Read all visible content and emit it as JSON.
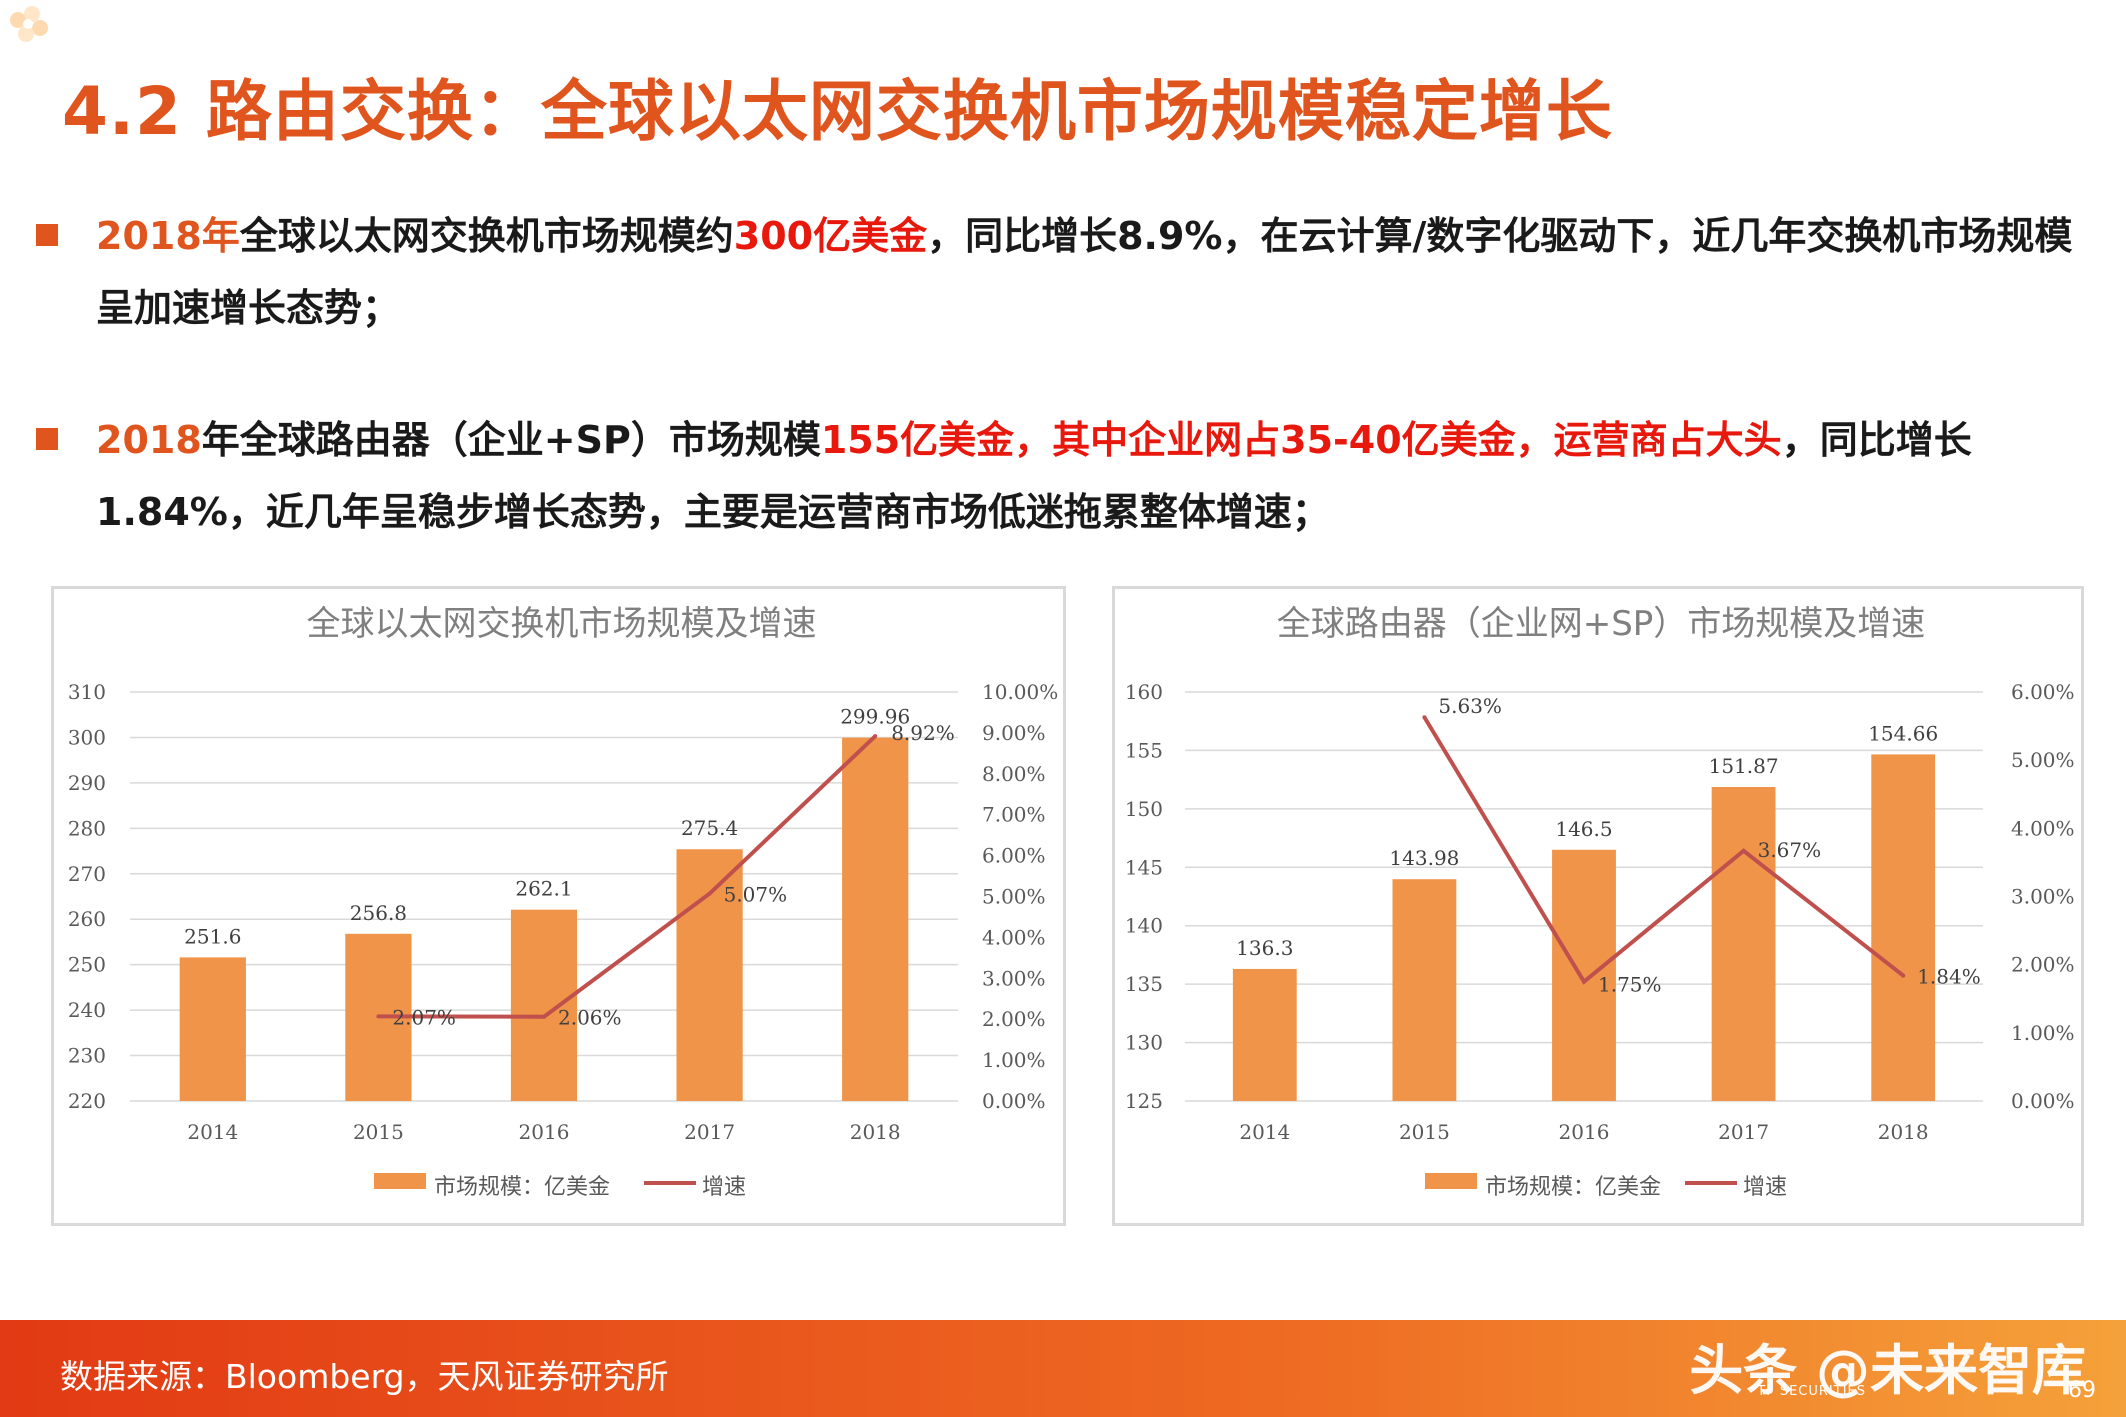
{
  "page": {
    "title": "4.2 路由交换：全球以太网交换机市场规模稳定增长",
    "bullets": [
      {
        "parts": [
          {
            "text": "2018年",
            "style": "orange"
          },
          {
            "text": "全球以太网交换机市场规模约",
            "style": "normal"
          },
          {
            "text": "300亿美金",
            "style": "red"
          },
          {
            "text": "，同比增长8.9%，在云计算/数字化驱动下，近几年交换机市场规模呈加速增长态势；",
            "style": "normal"
          }
        ]
      },
      {
        "parts": [
          {
            "text": "2018",
            "style": "orange"
          },
          {
            "text": "年全球路由器（企业+SP）市场规模",
            "style": "normal"
          },
          {
            "text": "155亿美金，其中企业网占35-40亿美金，运营商占大头",
            "style": "red"
          },
          {
            "text": "，同比增长1.84%，近几年呈稳步增长态势，主要是运营商市场低迷拖累整体增速；",
            "style": "normal"
          }
        ]
      }
    ],
    "footer": {
      "source": "数据来源：Bloomberg，天风证券研究所",
      "watermark": "头条 @未来智库",
      "logo_sub": "TF SECURITIES",
      "page_number": "69"
    }
  },
  "colors": {
    "accent": "#e0541e",
    "highlight_red": "#e8180c",
    "bar": "#f0944a",
    "line": "#c0504d",
    "axis_text": "#595959",
    "grid": "#d9d9d9"
  },
  "chart_data": [
    {
      "type": "bar",
      "title": "全球以太网交换机市场规模及增速",
      "categories": [
        "2014",
        "2015",
        "2016",
        "2017",
        "2018"
      ],
      "series": [
        {
          "name": "市场规模：亿美金",
          "type": "bar",
          "axis": "left",
          "values": [
            251.6,
            256.8,
            262.1,
            275.4,
            299.96
          ],
          "labels": [
            "251.6",
            "256.8",
            "262.1",
            "275.4",
            "299.96"
          ]
        },
        {
          "name": "增速",
          "type": "line",
          "axis": "right",
          "values": [
            null,
            2.07,
            2.06,
            5.07,
            8.92
          ],
          "labels": [
            "",
            "2.07%",
            "2.06%",
            "5.07%",
            "8.92%"
          ]
        }
      ],
      "y_left": {
        "min": 220,
        "max": 310,
        "ticks": [
          "220",
          "230",
          "240",
          "250",
          "260",
          "270",
          "280",
          "290",
          "300",
          "310"
        ]
      },
      "y_right": {
        "min": 0,
        "max": 10,
        "ticks": [
          "0.00%",
          "1.00%",
          "2.00%",
          "3.00%",
          "4.00%",
          "5.00%",
          "6.00%",
          "7.00%",
          "8.00%",
          "9.00%",
          "10.00%"
        ]
      },
      "grid": true,
      "legend_position": "bottom"
    },
    {
      "type": "bar",
      "title": "全球路由器（企业网+SP）市场规模及增速",
      "categories": [
        "2014",
        "2015",
        "2016",
        "2017",
        "2018"
      ],
      "series": [
        {
          "name": "市场规模：亿美金",
          "type": "bar",
          "axis": "left",
          "values": [
            136.3,
            143.98,
            146.5,
            151.87,
            154.66
          ],
          "labels": [
            "136.3",
            "143.98",
            "146.5",
            "151.87",
            "154.66"
          ]
        },
        {
          "name": "增速",
          "type": "line",
          "axis": "right",
          "values": [
            null,
            5.63,
            1.75,
            3.67,
            1.84
          ],
          "labels": [
            "",
            "5.63%",
            "1.75%",
            "3.67%",
            "1.84%"
          ]
        }
      ],
      "y_left": {
        "min": 125,
        "max": 160,
        "ticks": [
          "125",
          "130",
          "135",
          "140",
          "145",
          "150",
          "155",
          "160"
        ]
      },
      "y_right": {
        "min": 0,
        "max": 6,
        "ticks": [
          "0.00%",
          "1.00%",
          "2.00%",
          "3.00%",
          "4.00%",
          "5.00%",
          "6.00%"
        ]
      },
      "grid": true,
      "legend_position": "bottom"
    }
  ]
}
